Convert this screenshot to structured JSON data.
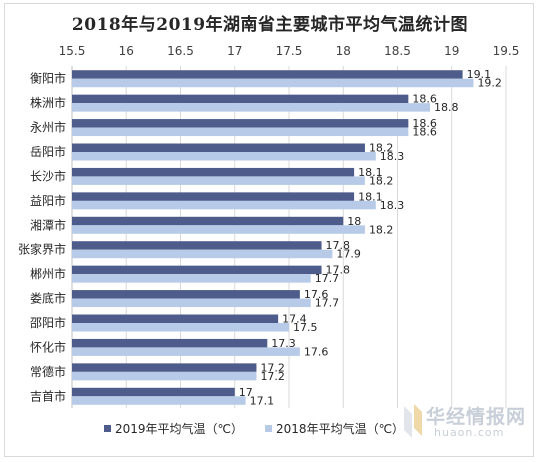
{
  "chart_data": {
    "type": "bar",
    "orientation": "horizontal",
    "title": "2018年与2019年湖南省主要城市平均气温统计图",
    "categories": [
      "衡阳市",
      "株洲市",
      "永州市",
      "岳阳市",
      "长沙市",
      "益阳市",
      "湘潭市",
      "张家界市",
      "郴州市",
      "娄底市",
      "邵阳市",
      "怀化市",
      "常德市",
      "吉首市"
    ],
    "series": [
      {
        "name": "2019年平均气温（℃）",
        "color": "#4e5c8c",
        "values": [
          19.1,
          18.6,
          18.6,
          18.2,
          18.1,
          18.1,
          18,
          17.8,
          17.8,
          17.6,
          17.4,
          17.3,
          17.2,
          17
        ]
      },
      {
        "name": "2018年平均气温（℃）",
        "color": "#b7cbe8",
        "values": [
          19.2,
          18.8,
          18.6,
          18.3,
          18.2,
          18.3,
          18.2,
          17.9,
          17.7,
          17.7,
          17.5,
          17.6,
          17.2,
          17.1
        ]
      }
    ],
    "xlim": [
      15.5,
      19.5
    ],
    "ticks": [
      "15.5",
      "16",
      "16.5",
      "17",
      "17.5",
      "18",
      "18.5",
      "19",
      "19.5"
    ],
    "axis_position": "top",
    "grid": true,
    "legend_position": "bottom"
  },
  "watermark": {
    "text": "华经情报网",
    "url": "huaon.com"
  }
}
